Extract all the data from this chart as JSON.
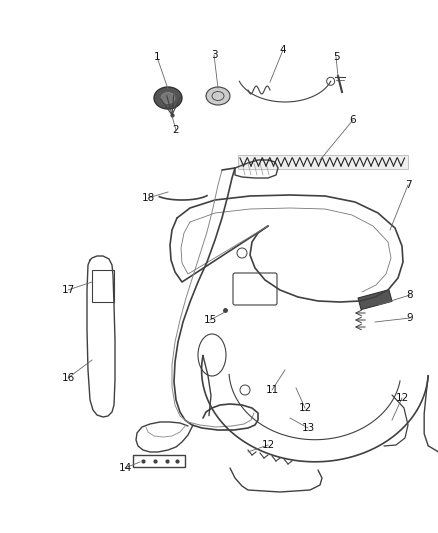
{
  "bg_color": "#ffffff",
  "line_color": "#404040",
  "label_color": "#111111",
  "label_fontsize": 7.5,
  "fig_w": 4.38,
  "fig_h": 5.33,
  "dpi": 100
}
